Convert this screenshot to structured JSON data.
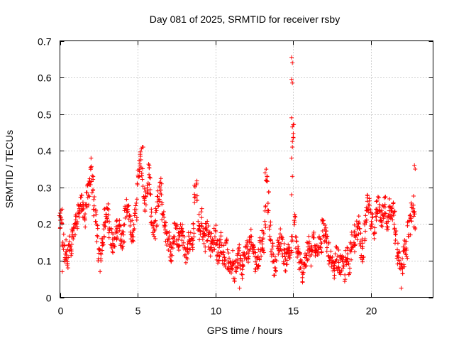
{
  "chart_data": {
    "type": "scatter",
    "title": "Day 081 of 2025, SRMTID for receiver rsby",
    "xlabel": "GPS time / hours",
    "ylabel": "SRMTID / TECUs",
    "xlim": [
      0,
      24
    ],
    "ylim": [
      0,
      0.7
    ],
    "xticks": [
      0,
      5,
      10,
      15,
      20
    ],
    "xtick_labels": [
      "0",
      "5",
      "10",
      "15",
      "20"
    ],
    "yticks": [
      0,
      0.1,
      0.2,
      0.3,
      0.4,
      0.5,
      0.6,
      0.7
    ],
    "ytick_labels": [
      "0",
      "0.1",
      "0.2",
      "0.3",
      "0.4",
      "0.5",
      "0.6",
      "0.7"
    ],
    "grid": true,
    "marker": "+",
    "color": "#ff0000",
    "series": [
      {
        "name": "SRMTID",
        "x": [
          0.0,
          0.1,
          0.2,
          0.3,
          0.4,
          0.5,
          0.6,
          0.7,
          0.8,
          0.9,
          1.0,
          1.1,
          1.2,
          1.3,
          1.4,
          1.5,
          1.6,
          1.7,
          1.8,
          1.9,
          2.0,
          2.1,
          2.2,
          2.3,
          2.4,
          2.5,
          2.6,
          2.7,
          2.8,
          2.9,
          3.0,
          3.1,
          3.2,
          3.3,
          3.4,
          3.5,
          3.6,
          3.7,
          3.8,
          3.9,
          4.0,
          4.1,
          4.2,
          4.3,
          4.4,
          4.5,
          4.6,
          4.7,
          4.8,
          4.9,
          5.0,
          5.1,
          5.2,
          5.3,
          5.4,
          5.5,
          5.6,
          5.7,
          5.8,
          5.9,
          6.0,
          6.1,
          6.2,
          6.3,
          6.4,
          6.5,
          6.6,
          6.7,
          6.8,
          6.9,
          7.0,
          7.1,
          7.2,
          7.3,
          7.4,
          7.5,
          7.6,
          7.7,
          7.8,
          7.9,
          8.0,
          8.1,
          8.2,
          8.3,
          8.4,
          8.5,
          8.6,
          8.7,
          8.8,
          8.9,
          9.0,
          9.1,
          9.2,
          9.3,
          9.4,
          9.5,
          9.6,
          9.7,
          9.8,
          9.9,
          10.0,
          10.1,
          10.2,
          10.3,
          10.4,
          10.5,
          10.6,
          10.7,
          10.8,
          10.9,
          11.0,
          11.1,
          11.2,
          11.3,
          11.4,
          11.5,
          11.6,
          11.7,
          11.8,
          11.9,
          12.0,
          12.1,
          12.2,
          12.3,
          12.4,
          12.5,
          12.6,
          12.7,
          12.8,
          12.9,
          13.0,
          13.1,
          13.2,
          13.3,
          13.4,
          13.5,
          13.6,
          13.7,
          13.8,
          13.9,
          14.0,
          14.1,
          14.2,
          14.3,
          14.4,
          14.5,
          14.6,
          14.7,
          14.8,
          14.9,
          15.0,
          15.1,
          15.2,
          15.3,
          15.4,
          15.5,
          15.6,
          15.7,
          15.8,
          15.9,
          16.0,
          16.1,
          16.2,
          16.3,
          16.4,
          16.5,
          16.6,
          16.7,
          16.8,
          16.9,
          17.0,
          17.1,
          17.2,
          17.3,
          17.4,
          17.5,
          17.6,
          17.7,
          17.8,
          17.9,
          18.0,
          18.1,
          18.2,
          18.3,
          18.4,
          18.5,
          18.6,
          18.7,
          18.8,
          18.9,
          19.0,
          19.1,
          19.2,
          19.3,
          19.4,
          19.5,
          19.6,
          19.7,
          19.8,
          19.9,
          20.0,
          20.1,
          20.2,
          20.3,
          20.4,
          20.5,
          20.6,
          20.7,
          20.8,
          20.9,
          21.0,
          21.1,
          21.2,
          21.3,
          21.4,
          21.5,
          21.6,
          21.7,
          21.8,
          21.9,
          22.0,
          22.1,
          22.2,
          22.3,
          22.4,
          22.5,
          22.6,
          22.7,
          22.8
        ],
        "y": [
          0.2,
          0.22,
          0.15,
          0.12,
          0.13,
          0.11,
          0.14,
          0.12,
          0.16,
          0.17,
          0.2,
          0.21,
          0.23,
          0.26,
          0.25,
          0.24,
          0.22,
          0.26,
          0.28,
          0.3,
          0.33,
          0.31,
          0.25,
          0.23,
          0.17,
          0.12,
          0.1,
          0.15,
          0.17,
          0.22,
          0.24,
          0.23,
          0.19,
          0.16,
          0.15,
          0.14,
          0.18,
          0.19,
          0.2,
          0.17,
          0.16,
          0.18,
          0.22,
          0.25,
          0.23,
          0.2,
          0.18,
          0.17,
          0.21,
          0.24,
          0.32,
          0.35,
          0.38,
          0.33,
          0.28,
          0.26,
          0.3,
          0.34,
          0.31,
          0.22,
          0.19,
          0.18,
          0.22,
          0.27,
          0.29,
          0.31,
          0.24,
          0.21,
          0.18,
          0.17,
          0.15,
          0.13,
          0.12,
          0.16,
          0.18,
          0.17,
          0.15,
          0.16,
          0.18,
          0.17,
          0.14,
          0.11,
          0.13,
          0.15,
          0.16,
          0.14,
          0.18,
          0.28,
          0.29,
          0.2,
          0.18,
          0.22,
          0.17,
          0.15,
          0.2,
          0.18,
          0.16,
          0.14,
          0.15,
          0.16,
          0.17,
          0.13,
          0.12,
          0.14,
          0.15,
          0.12,
          0.11,
          0.13,
          0.1,
          0.08,
          0.09,
          0.1,
          0.07,
          0.09,
          0.11,
          0.12,
          0.09,
          0.08,
          0.1,
          0.12,
          0.13,
          0.11,
          0.14,
          0.16,
          0.15,
          0.12,
          0.1,
          0.09,
          0.11,
          0.14,
          0.16,
          0.15,
          0.22,
          0.32,
          0.26,
          0.18,
          0.14,
          0.12,
          0.09,
          0.08,
          0.13,
          0.15,
          0.16,
          0.14,
          0.12,
          0.1,
          0.11,
          0.13,
          0.12,
          0.14,
          0.45,
          0.2,
          0.15,
          0.12,
          0.1,
          0.08,
          0.07,
          0.09,
          0.1,
          0.12,
          0.14,
          0.11,
          0.13,
          0.15,
          0.13,
          0.12,
          0.14,
          0.16,
          0.15,
          0.19,
          0.18,
          0.16,
          0.15,
          0.12,
          0.1,
          0.08,
          0.07,
          0.09,
          0.11,
          0.1,
          0.09,
          0.08,
          0.09,
          0.07,
          0.1,
          0.11,
          0.09,
          0.13,
          0.16,
          0.17,
          0.15,
          0.18,
          0.2,
          0.17,
          0.13,
          0.12,
          0.18,
          0.22,
          0.25,
          0.24,
          0.21,
          0.2,
          0.19,
          0.22,
          0.24,
          0.26,
          0.23,
          0.22,
          0.24,
          0.25,
          0.21,
          0.2,
          0.24,
          0.22,
          0.23,
          0.21,
          0.17,
          0.12,
          0.1,
          0.08,
          0.09,
          0.11,
          0.14,
          0.13,
          0.18,
          0.2,
          0.23,
          0.25,
          0.21
        ],
        "highlights": [
          {
            "x": 14.9,
            "y": 0.655
          },
          {
            "x": 14.95,
            "y": 0.64
          },
          {
            "x": 14.9,
            "y": 0.595
          },
          {
            "x": 14.95,
            "y": 0.585
          },
          {
            "x": 14.9,
            "y": 0.49
          },
          {
            "x": 14.95,
            "y": 0.465
          },
          {
            "x": 14.95,
            "y": 0.41
          },
          {
            "x": 14.9,
            "y": 0.38
          },
          {
            "x": 14.95,
            "y": 0.33
          },
          {
            "x": 14.9,
            "y": 0.28
          },
          {
            "x": 13.2,
            "y": 0.34
          },
          {
            "x": 13.25,
            "y": 0.32
          },
          {
            "x": 5.3,
            "y": 0.41
          },
          {
            "x": 5.35,
            "y": 0.41
          },
          {
            "x": 2.0,
            "y": 0.38
          },
          {
            "x": 22.8,
            "y": 0.36
          },
          {
            "x": 22.85,
            "y": 0.35
          },
          {
            "x": 11.55,
            "y": 0.025
          },
          {
            "x": 21.95,
            "y": 0.025
          },
          {
            "x": 0.15,
            "y": 0.07
          }
        ]
      }
    ]
  }
}
